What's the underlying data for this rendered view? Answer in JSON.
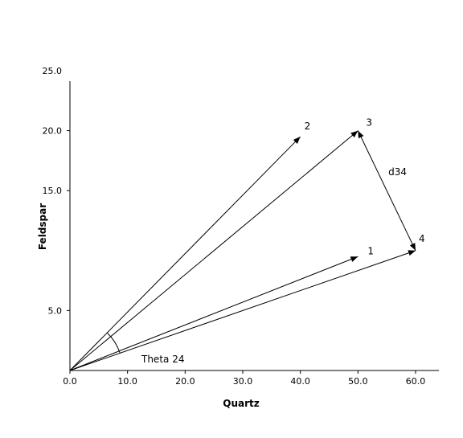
{
  "chart_data": {
    "type": "vector-diagram",
    "xlabel": "Quartz",
    "ylabel": "Feldspar",
    "xlim": [
      0,
      60
    ],
    "ylim": [
      0,
      25
    ],
    "x_ticks": [
      "0.0",
      "10.0",
      "20.0",
      "30.0",
      "40.0",
      "50.0",
      "60.0"
    ],
    "y_ticks": [
      "5.0",
      "15.0",
      "20.0",
      "25.0"
    ],
    "y_tick_values": [
      5,
      15,
      20,
      25
    ],
    "vectors": [
      {
        "label": "1",
        "x": 50,
        "y": 9.5
      },
      {
        "label": "2",
        "x": 40,
        "y": 19.5
      },
      {
        "label": "3",
        "x": 50,
        "y": 20
      },
      {
        "label": "4",
        "x": 60,
        "y": 10
      }
    ],
    "difference_vector": {
      "label": "d34",
      "from": "3",
      "to": "4"
    },
    "angle": {
      "label": "Theta 24",
      "between": [
        "2",
        "4"
      ]
    }
  }
}
